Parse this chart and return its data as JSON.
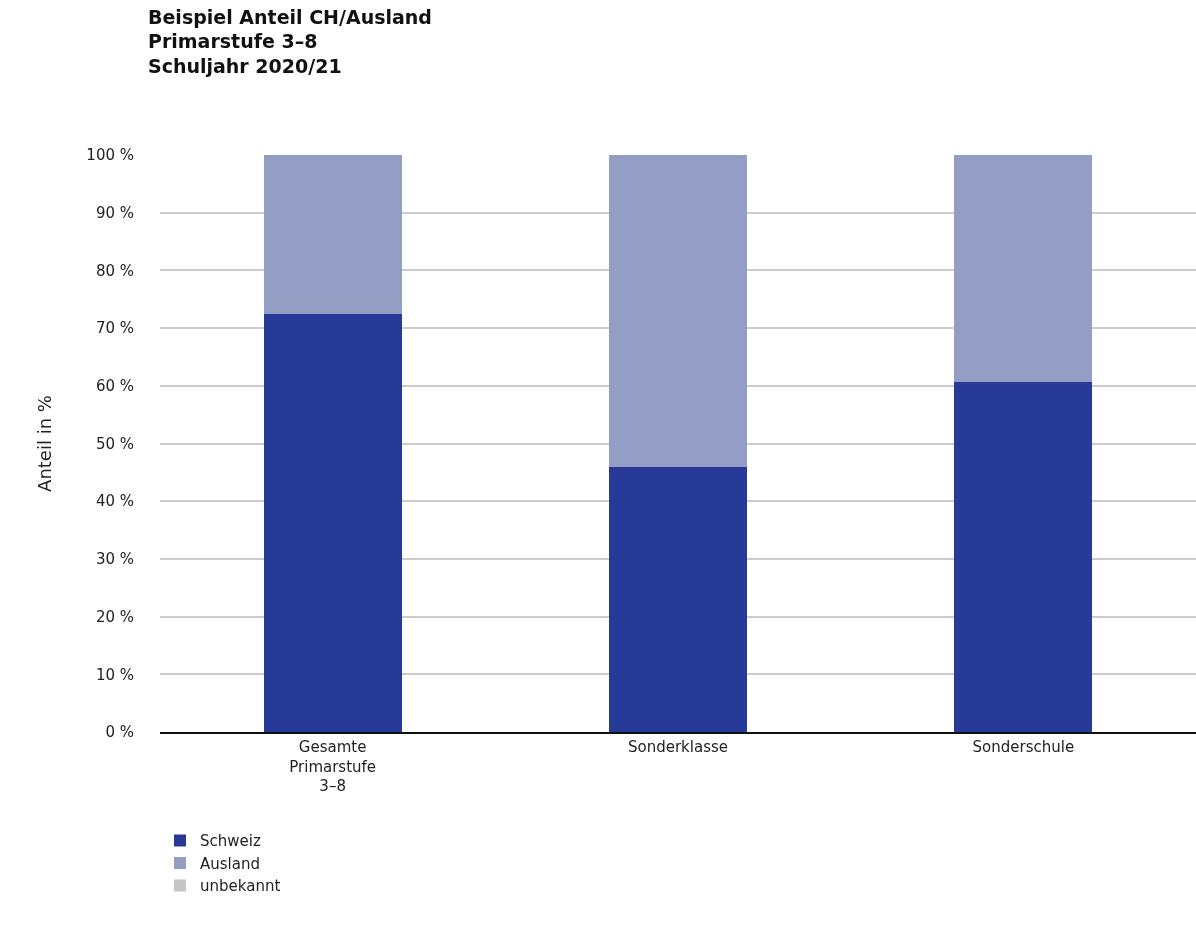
{
  "chart_data": {
    "type": "bar",
    "title": "Beispiel Anteil CH/Ausland\nPrimarstufe 3–8\nSchuljahr 2020/21",
    "ylabel": "Anteil in %",
    "categories": [
      "Gesamte\nPrimarstufe\n3–8",
      "Sonderklasse",
      "Sonderschule"
    ],
    "stacked": true,
    "series": [
      {
        "name": "Schweiz",
        "color": "#283a97",
        "values": [
          72.5,
          46,
          60.6
        ]
      },
      {
        "name": "Ausland",
        "color": "#949ec4",
        "values": [
          27.5,
          54,
          39.4
        ]
      },
      {
        "name": "unbekannt",
        "color": "#c2c6c6",
        "values": [
          0,
          0,
          0
        ]
      }
    ],
    "ylim": [
      0,
      100
    ],
    "yticks": [
      {
        "value": 0,
        "label": "0 %"
      },
      {
        "value": 10,
        "label": "10 %"
      },
      {
        "value": 20,
        "label": "20 %"
      },
      {
        "value": 30,
        "label": "30 %"
      },
      {
        "value": 40,
        "label": "40 %"
      },
      {
        "value": 50,
        "label": "50 %"
      },
      {
        "value": 60,
        "label": "60 %"
      },
      {
        "value": 70,
        "label": "70 %"
      },
      {
        "value": 80,
        "label": "80 %"
      },
      {
        "value": 90,
        "label": "90 %"
      },
      {
        "value": 100,
        "label": "100 %"
      }
    ],
    "grid": "y",
    "legend": "bottom left"
  }
}
